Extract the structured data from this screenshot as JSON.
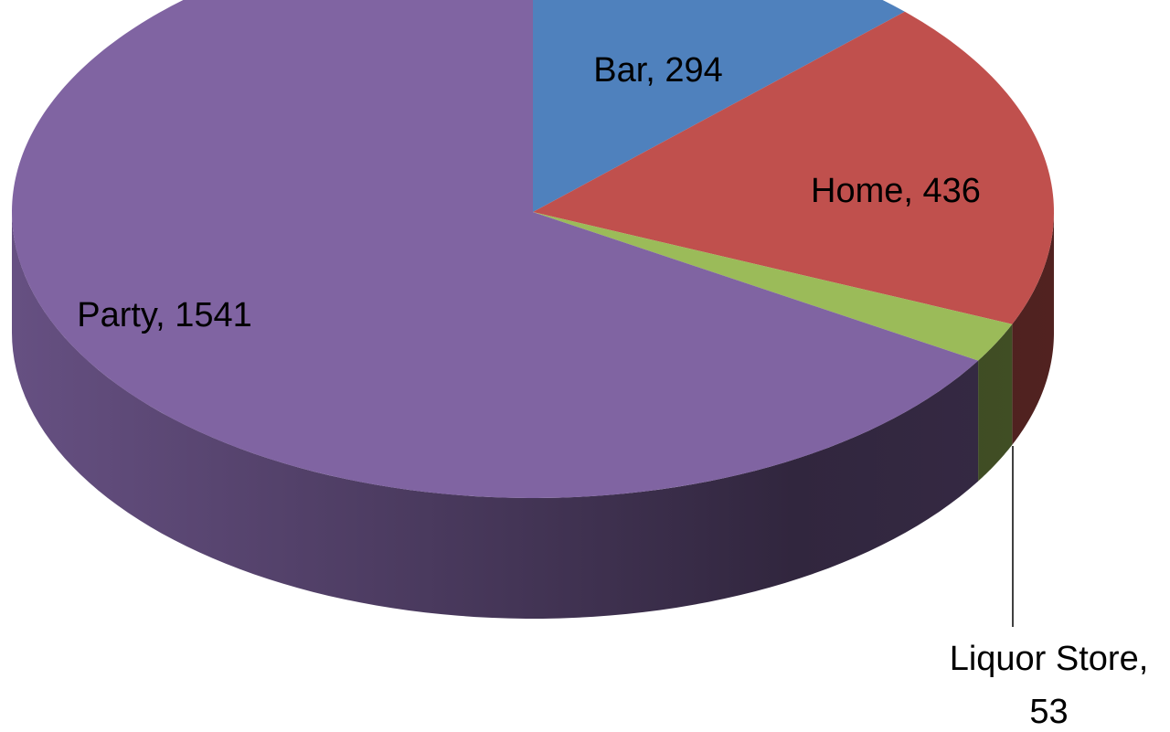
{
  "chart_data": {
    "type": "pie",
    "categories": [
      "Bar",
      "Home",
      "Liquor Store",
      "Party"
    ],
    "values": [
      294,
      436,
      53,
      1541
    ],
    "value_labels": [
      "Bar, 294",
      "Home, 436",
      "Liquor Store, 53",
      "Party, 1541"
    ],
    "colors": [
      "#4f81bd",
      "#c0504d",
      "#9bbb59",
      "#8064a2"
    ],
    "three_d": true
  }
}
